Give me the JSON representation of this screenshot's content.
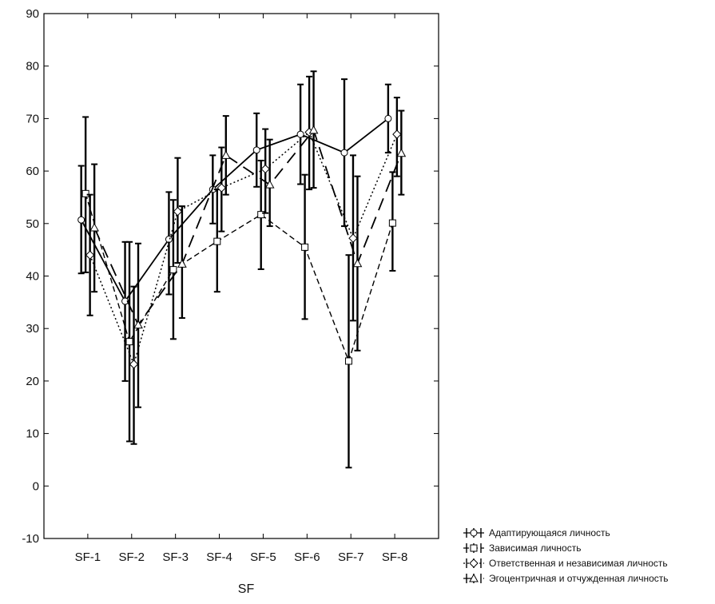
{
  "chart_data": {
    "type": "line",
    "xlabel": "SF",
    "categories": [
      "SF-1",
      "SF-2",
      "SF-3",
      "SF-4",
      "SF-5",
      "SF-6",
      "SF-7",
      "SF-8"
    ],
    "ylim": [
      -10,
      90
    ],
    "yticks": [
      -10,
      0,
      10,
      20,
      30,
      40,
      50,
      60,
      70,
      80,
      90
    ],
    "legend_position": "bottom-right",
    "series": [
      {
        "name": "Адаптирующаяся личность",
        "marker": "circle",
        "line": "solid",
        "offset": -0.15,
        "values": [
          50.7,
          35.2,
          47.0,
          56.5,
          64.0,
          67.0,
          63.5,
          70.0
        ],
        "err_low": [
          40.5,
          20.0,
          36.5,
          50.0,
          57.0,
          57.5,
          49.5,
          63.5
        ],
        "err_high": [
          61.0,
          46.5,
          56.0,
          63.0,
          71.0,
          76.5,
          77.5,
          76.5
        ]
      },
      {
        "name": "Зависимая личность",
        "marker": "square",
        "line": "dashed",
        "offset": -0.05,
        "values": [
          55.7,
          27.5,
          41.2,
          46.6,
          51.7,
          45.5,
          23.8,
          50.1
        ],
        "err_low": [
          40.7,
          8.5,
          28.0,
          37.0,
          41.3,
          31.8,
          3.5,
          41.0
        ],
        "err_high": [
          70.3,
          46.5,
          54.5,
          56.5,
          62.0,
          59.3,
          44.0,
          59.8
        ]
      },
      {
        "name": "Ответственная и независимая личность",
        "marker": "diamond",
        "line": "dotted",
        "offset": 0.05,
        "values": [
          44.0,
          23.2,
          52.3,
          56.8,
          60.4,
          67.4,
          47.2,
          67.0
        ],
        "err_low": [
          32.5,
          8.0,
          42.5,
          48.5,
          52.0,
          56.5,
          31.5,
          59.0
        ],
        "err_high": [
          55.5,
          38.0,
          62.5,
          64.5,
          68.0,
          78.0,
          63.0,
          74.0
        ]
      },
      {
        "name": "Эгоцентричная и отчужденная личность",
        "marker": "triangle",
        "line": "long-dash",
        "offset": 0.15,
        "values": [
          49.2,
          30.7,
          42.3,
          63.0,
          57.4,
          67.8,
          42.4,
          63.4
        ],
        "err_low": [
          37.0,
          15.0,
          32.0,
          55.5,
          49.5,
          56.8,
          25.8,
          55.5
        ],
        "err_high": [
          61.3,
          46.2,
          53.3,
          70.5,
          66.0,
          79.0,
          59.0,
          71.5
        ]
      }
    ]
  }
}
